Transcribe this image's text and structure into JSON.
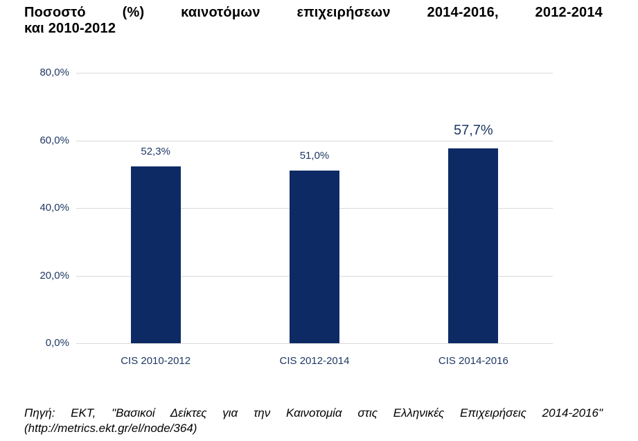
{
  "title": {
    "line1": "Ποσοστό (%) καινοτόμων επιχειρήσεων 2014-2016, 2012-2014",
    "line2": "και 2010-2012"
  },
  "source": {
    "line1": "Πηγή: ΕΚΤ, \"Βασικοί Δείκτες για την Καινοτομία στις Ελληνικές Επιχειρήσεις 2014-2016\"",
    "line2": "(http://metrics.ekt.gr/el/node/364)"
  },
  "colors": {
    "bar_fill": "#0d2a64",
    "axis_label": "#1f3864",
    "gridline": "#d9d9d9",
    "title_text": "#000000"
  },
  "chart_data": {
    "type": "bar",
    "title": "Ποσοστό (%) καινοτόμων επιχειρήσεων 2014-2016, 2012-2014 και 2010-2012",
    "categories": [
      "CIS 2010-2012",
      "CIS 2012-2014",
      "CIS 2014-2016"
    ],
    "values": [
      52.3,
      51.0,
      57.7
    ],
    "value_labels": [
      "52,3%",
      "51,0%",
      "57,7%"
    ],
    "highlighted_index": 2,
    "xlabel": "",
    "ylabel": "",
    "ylim": [
      0,
      80
    ],
    "yticks": [
      0,
      20,
      40,
      60,
      80
    ],
    "ytick_labels": [
      "0,0%",
      "20,0%",
      "40,0%",
      "60,0%",
      "80,0%"
    ],
    "grid": true,
    "legend": false
  }
}
